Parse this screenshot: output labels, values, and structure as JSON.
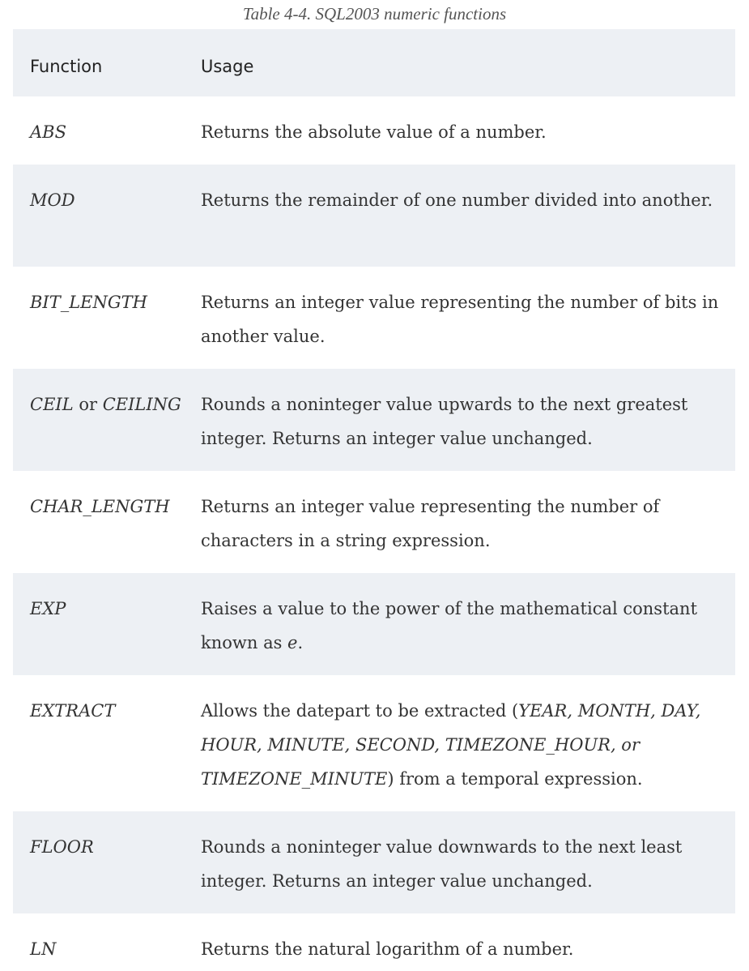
{
  "caption": "Table 4-4. SQL2003 numeric functions",
  "headers": {
    "function": "Function",
    "usage": "Usage"
  },
  "rows": {
    "abs": {
      "fn": "ABS",
      "usage": "Returns the absolute value of a number."
    },
    "mod": {
      "fn": "MOD",
      "usage": "Returns the remainder of one number divided into another."
    },
    "bit_length": {
      "fn": "BIT_LENGTH",
      "usage": "Returns an integer value representing the number of bits in another value."
    },
    "ceil": {
      "fn_a": "CEIL",
      "fn_or": " or ",
      "fn_b": "CEILING",
      "usage": "Rounds a noninteger value upwards to the next great­est integer. Returns an integer value unchanged."
    },
    "char_length": {
      "fn": "CHAR_LENGTH",
      "usage": "Returns an integer value representing the number of characters in a string expression."
    },
    "exp": {
      "fn": "EXP",
      "usage_a": "Raises a value to the power of the mathematical con­stant known as ",
      "usage_e": "e",
      "usage_b": "."
    },
    "extract": {
      "fn": "EXTRACT",
      "usage_a": "Allows the datepart to be extracted (",
      "usage_it": "YEAR, MONTH, DAY, HOUR, MINUTE, SECOND, TIMEZONE_HOUR, or TIMEZONE_MINUTE",
      "usage_b": ") from a temporal expression."
    },
    "floor": {
      "fn": "FLOOR",
      "usage": "Rounds a noninteger value downwards to the next least integer. Returns an integer value unchanged."
    },
    "ln": {
      "fn": "LN",
      "usage": "Returns the natural logarithm of a number."
    }
  }
}
